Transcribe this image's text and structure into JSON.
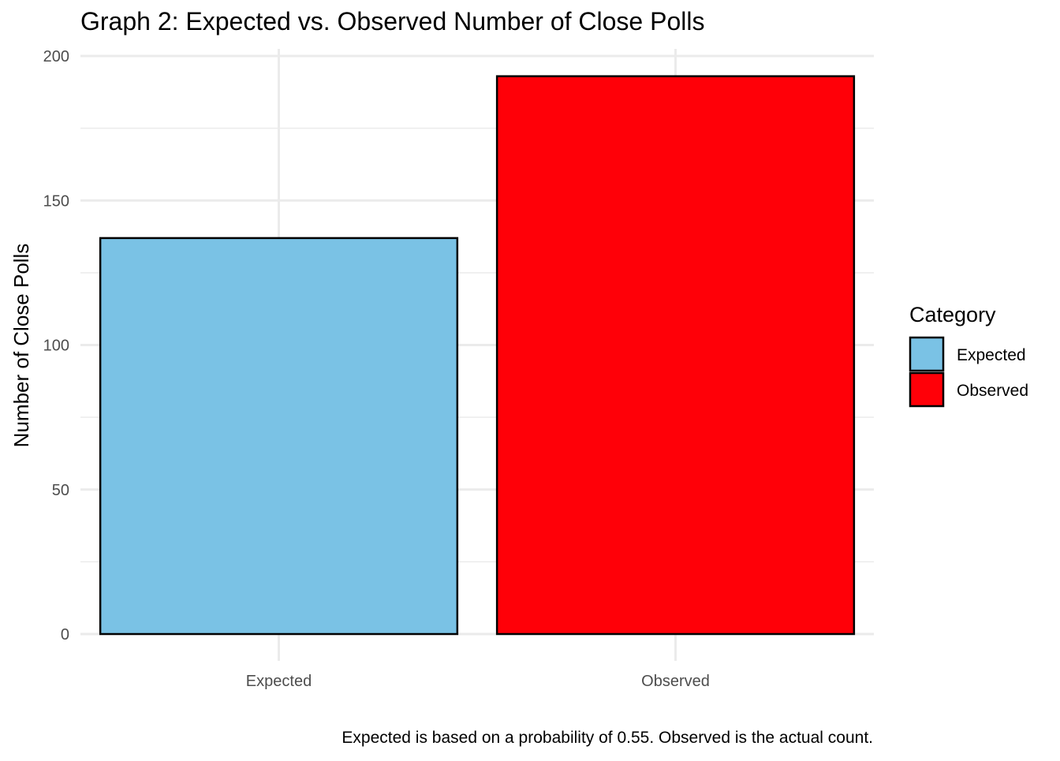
{
  "chart_data": {
    "type": "bar",
    "title": "Graph 2: Expected vs. Observed Number of Close Polls",
    "xlabel": "",
    "ylabel": "Number of Close Polls",
    "categories": [
      "Expected",
      "Observed"
    ],
    "values": [
      137,
      193
    ],
    "colors": [
      "#7AC2E5",
      "#FF0008"
    ],
    "ylim": [
      0,
      200
    ],
    "yticks": [
      0,
      50,
      100,
      150,
      200
    ],
    "grid": true,
    "legend": {
      "title": "Category",
      "position": "right",
      "entries": [
        {
          "label": "Expected",
          "color": "#7AC2E5"
        },
        {
          "label": "Observed",
          "color": "#FF0008"
        }
      ]
    },
    "caption": "Expected is based on a probability of 0.55. Observed is the actual count."
  }
}
